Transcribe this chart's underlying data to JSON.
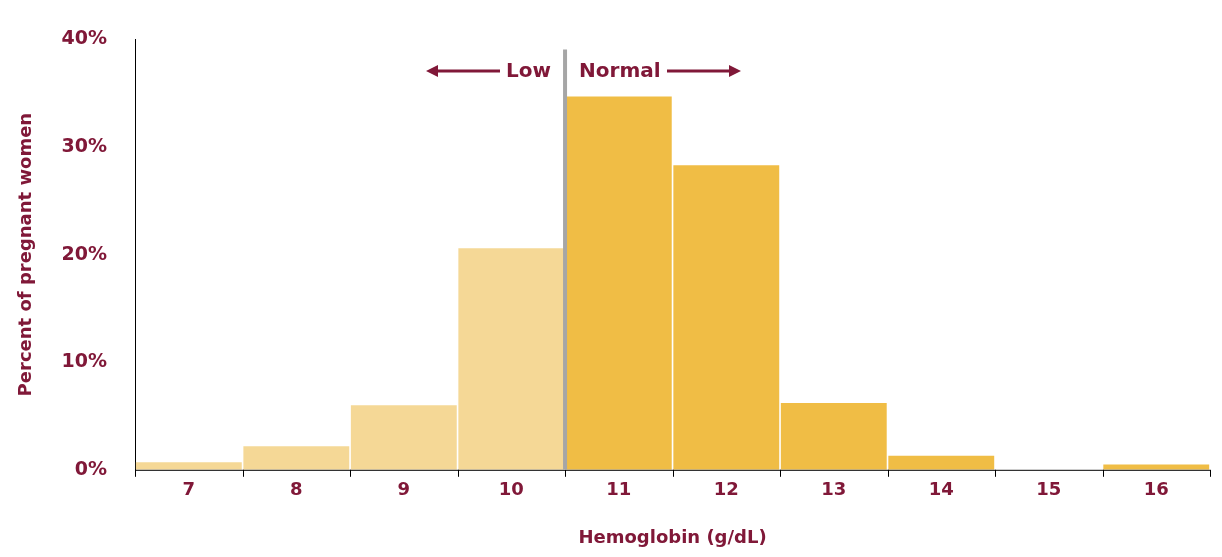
{
  "chart_data": {
    "type": "histogram",
    "xlabel": "Hemoglobin (g/dL)",
    "ylabel": "Percent of pregnant women",
    "bins": [
      6.5,
      7.5,
      8.5,
      9.5,
      10.5,
      11.5,
      12.5,
      13.5,
      14.5,
      15.5,
      16.5
    ],
    "values": [
      0.7,
      2.2,
      6.0,
      20.6,
      34.7,
      28.3,
      6.2,
      1.3,
      0,
      0.5
    ],
    "colors": [
      "#f5d896",
      "#f5d896",
      "#f5d896",
      "#f5d896",
      "#f0bd45",
      "#f0bd45",
      "#f0bd45",
      "#f0bd45",
      "#f0bd45",
      "#f0bd45"
    ],
    "xlim": [
      6.5,
      16.5
    ],
    "xticks": [
      7,
      8,
      9,
      10,
      11,
      12,
      13,
      14,
      15,
      16
    ],
    "ylim": [
      0,
      40
    ],
    "yticks": [
      {
        "value": 0,
        "label": "0%"
      },
      {
        "value": 10,
        "label": "10%"
      },
      {
        "value": 20,
        "label": "20%"
      },
      {
        "value": 30,
        "label": "30%"
      },
      {
        "value": 40,
        "label": "40%"
      }
    ],
    "ref_lines": [
      {
        "axis": "x",
        "value": 10.5,
        "color": "#a6a6a6"
      }
    ],
    "annotations": [
      "Low",
      "Normal"
    ],
    "grid": false,
    "legend": false
  }
}
